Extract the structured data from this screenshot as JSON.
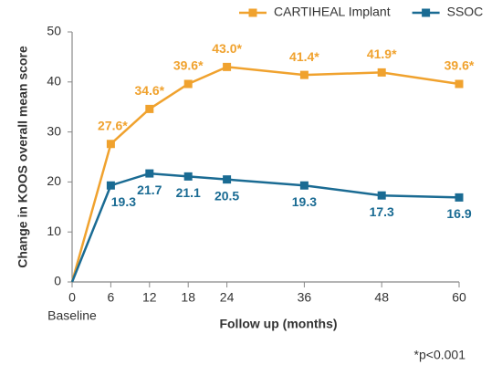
{
  "chart_data": {
    "type": "line",
    "x": [
      0,
      6,
      12,
      18,
      24,
      36,
      48,
      60
    ],
    "series": [
      {
        "name": "CARTIHEAL Implant",
        "color": "#f0a22e",
        "values": [
          0,
          27.6,
          34.6,
          39.6,
          43.0,
          41.4,
          41.9,
          39.6
        ],
        "value_labels": [
          null,
          "27.6*",
          "34.6*",
          "39.6*",
          "43.0*",
          "41.4*",
          "41.9*",
          "39.6*"
        ]
      },
      {
        "name": "SSOC",
        "color": "#1a6b93",
        "values": [
          0,
          19.3,
          21.7,
          21.1,
          20.5,
          19.3,
          17.3,
          16.9
        ],
        "value_labels": [
          null,
          "19.3",
          "21.7",
          "21.1",
          "20.5",
          "19.3",
          "17.3",
          "16.9"
        ]
      }
    ],
    "xlim": [
      0,
      60
    ],
    "xticks": [
      0,
      6,
      12,
      18,
      24,
      36,
      48,
      60
    ],
    "ylim": [
      0,
      50
    ],
    "yticks": [
      0,
      10,
      20,
      30,
      40,
      50
    ],
    "x_label": "Follow up (months)",
    "y_label": "Change in KOOS overall mean score",
    "baseline_label": "Baseline",
    "footnote": "*p<0.001",
    "legend": "top-right"
  }
}
